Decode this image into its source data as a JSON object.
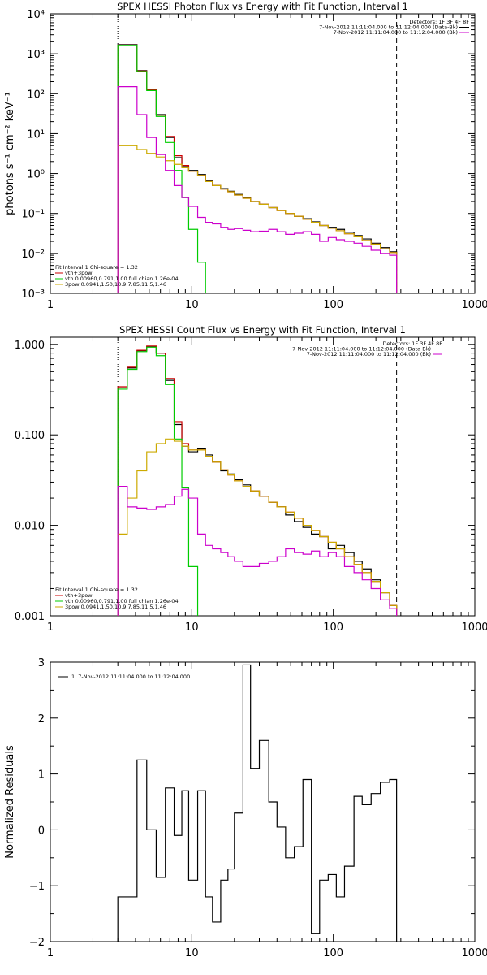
{
  "chart_data": [
    {
      "type": "line",
      "title": "SPEX HESSI Photon Flux vs Energy with Fit Function, Interval 1",
      "xlabel": "",
      "ylabel": "photons s⁻¹ cm⁻² keV⁻¹",
      "xscale": "log",
      "yscale": "log",
      "xlim": [
        1,
        1000
      ],
      "ylim": [
        0.001,
        10000
      ],
      "x_ticks": [
        {
          "v": 1,
          "label": "1"
        },
        {
          "v": 10,
          "label": "10"
        },
        {
          "v": 100,
          "label": "100"
        },
        {
          "v": 1000,
          "label": "1000"
        }
      ],
      "y_ticks": [
        {
          "v": 0.001,
          "label": "10⁻³"
        },
        {
          "v": 0.01,
          "label": "10⁻²"
        },
        {
          "v": 0.1,
          "label": "10⁻¹"
        },
        {
          "v": 1,
          "label": "10⁰"
        },
        {
          "v": 10,
          "label": "10¹"
        },
        {
          "v": 100,
          "label": "10²"
        },
        {
          "v": 1000,
          "label": "10³"
        },
        {
          "v": 10000,
          "label": "10⁴"
        }
      ],
      "vlines": [
        {
          "x": 3,
          "style": "dotted",
          "color": "#000000"
        },
        {
          "x": 280,
          "style": "dashed",
          "color": "#000000"
        }
      ],
      "legend_top_right": [
        "Detectors: 1F 3F 4F 8F",
        "7-Nov-2012 11:11:04.000 to 11:12:04.000 (Data-Bk)",
        "7-Nov-2012 11:11:04.000 to 11:12:04.000 (Bk)"
      ],
      "legend_bottom_left": [
        "Fit Interval 1   Chi-square = 1.32",
        "vth+3pow",
        "vth 0.00960,0.791,1.00  full chian 1.26e-04",
        "3pow 0.0941,1.50,10.9,7.85,11.5,1.46"
      ],
      "series": [
        {
          "name": "Data-Bk",
          "color": "#000000",
          "edges": [
            3,
            3.5,
            4.1,
            4.8,
            5.6,
            6.5,
            7.5,
            8.5,
            9.5,
            11,
            12.5,
            14,
            16,
            18,
            20,
            23,
            26,
            30,
            35,
            40,
            46,
            53,
            61,
            70,
            80,
            92,
            105,
            120,
            140,
            160,
            185,
            215,
            250,
            280
          ],
          "values": [
            1700,
            1700,
            380,
            130,
            30,
            8,
            2.5,
            1.5,
            1.2,
            0.95,
            0.65,
            0.5,
            0.42,
            0.36,
            0.3,
            0.25,
            0.2,
            0.17,
            0.14,
            0.12,
            0.1,
            0.085,
            0.074,
            0.062,
            0.05,
            0.045,
            0.04,
            0.034,
            0.028,
            0.023,
            0.018,
            0.014,
            0.011
          ]
        },
        {
          "name": "vth+3pow",
          "color": "#cc0000",
          "edges": [
            3,
            3.5,
            4.1,
            4.8,
            5.6,
            6.5,
            7.5,
            8.5,
            9.5,
            11,
            12.5,
            14,
            16,
            18,
            20,
            23,
            26,
            30,
            35,
            40,
            46,
            53,
            61,
            70,
            80,
            92,
            105,
            120,
            140,
            160,
            185,
            215,
            250,
            280
          ],
          "values": [
            1650,
            1650,
            370,
            125,
            29,
            8.5,
            2.8,
            1.6,
            1.15,
            0.9,
            0.63,
            0.5,
            0.41,
            0.35,
            0.29,
            0.24,
            0.2,
            0.17,
            0.14,
            0.118,
            0.1,
            0.085,
            0.072,
            0.06,
            0.05,
            0.043,
            0.037,
            0.031,
            0.026,
            0.021,
            0.017,
            0.013,
            0.0105
          ]
        },
        {
          "name": "vth",
          "color": "#00cc00",
          "edges": [
            3,
            3.5,
            4.1,
            4.8,
            5.6,
            6.5,
            7.5,
            8.5,
            9.5,
            11,
            12.5,
            14
          ],
          "values": [
            1600,
            1600,
            360,
            120,
            27,
            6,
            1.2,
            0.25,
            0.04,
            0.006,
            0.0008
          ]
        },
        {
          "name": "3pow",
          "color": "#ccaa00",
          "edges": [
            3,
            3.5,
            4.1,
            4.8,
            5.6,
            6.5,
            7.5,
            8.5,
            9.5,
            11,
            12.5,
            14,
            16,
            18,
            20,
            23,
            26,
            30,
            35,
            40,
            46,
            53,
            61,
            70,
            80,
            92,
            105,
            120,
            140,
            160,
            185,
            215,
            250,
            280
          ],
          "values": [
            5,
            5,
            4,
            3.2,
            2.6,
            2.1,
            1.7,
            1.4,
            1.15,
            0.9,
            0.63,
            0.5,
            0.41,
            0.35,
            0.29,
            0.24,
            0.2,
            0.17,
            0.14,
            0.118,
            0.1,
            0.085,
            0.072,
            0.06,
            0.05,
            0.043,
            0.037,
            0.031,
            0.026,
            0.021,
            0.017,
            0.013,
            0.0105
          ]
        },
        {
          "name": "Bk",
          "color": "#cc00cc",
          "edges": [
            3,
            3.5,
            4.1,
            4.8,
            5.6,
            6.5,
            7.5,
            8.5,
            9.5,
            11,
            12.5,
            14,
            16,
            18,
            20,
            23,
            26,
            30,
            35,
            40,
            46,
            53,
            61,
            70,
            80,
            92,
            105,
            120,
            140,
            160,
            185,
            215,
            250,
            280
          ],
          "values": [
            150,
            150,
            30,
            8,
            3,
            1.2,
            0.5,
            0.25,
            0.15,
            0.08,
            0.06,
            0.055,
            0.045,
            0.04,
            0.042,
            0.038,
            0.035,
            0.036,
            0.04,
            0.035,
            0.03,
            0.032,
            0.035,
            0.03,
            0.02,
            0.025,
            0.022,
            0.02,
            0.018,
            0.015,
            0.012,
            0.01,
            0.009
          ]
        }
      ]
    },
    {
      "type": "line",
      "title": "SPEX HESSI Count Flux vs Energy with Fit Function, Interval 1",
      "xlabel": "",
      "ylabel": "",
      "xscale": "log",
      "yscale": "log",
      "xlim": [
        1,
        1000
      ],
      "ylim": [
        0.001,
        1.2
      ],
      "x_ticks": [
        {
          "v": 1,
          "label": "1"
        },
        {
          "v": 10,
          "label": "10"
        },
        {
          "v": 100,
          "label": "100"
        },
        {
          "v": 1000,
          "label": "1000"
        }
      ],
      "y_ticks": [
        {
          "v": 0.001,
          "label": "0.001"
        },
        {
          "v": 0.01,
          "label": "0.010"
        },
        {
          "v": 0.1,
          "label": "0.100"
        },
        {
          "v": 1,
          "label": "1.000"
        }
      ],
      "vlines": [
        {
          "x": 3,
          "style": "dotted",
          "color": "#000000"
        },
        {
          "x": 280,
          "style": "dashed",
          "color": "#000000"
        }
      ],
      "legend_top_right": [
        "Detectors: 1F 3F 4F 8F",
        "7-Nov-2012 11:11:04.000 to 11:12:04.000 (Data-Bk)",
        "7-Nov-2012 11:11:04.000 to 11:12:04.000 (Bk)"
      ],
      "legend_bottom_left": [
        "Fit Interval 1   Chi-square = 1.32",
        "vth+3pow",
        "vth 0.00960,0.791,1.00  full chian 1.26e-04",
        "3pow 0.0941,1.50,10.9,7.85,11.5,1.46"
      ],
      "series": [
        {
          "name": "Data-Bk",
          "color": "#000000",
          "edges": [
            3,
            3.5,
            4.1,
            4.8,
            5.6,
            6.5,
            7.5,
            8.5,
            9.5,
            11,
            12.5,
            14,
            16,
            18,
            20,
            23,
            26,
            30,
            35,
            40,
            46,
            53,
            61,
            70,
            80,
            92,
            105,
            120,
            140,
            160,
            185,
            215,
            250,
            280
          ],
          "values": [
            0.33,
            0.55,
            0.85,
            0.95,
            0.8,
            0.4,
            0.13,
            0.075,
            0.065,
            0.07,
            0.06,
            0.05,
            0.04,
            0.037,
            0.032,
            0.028,
            0.024,
            0.021,
            0.018,
            0.016,
            0.013,
            0.011,
            0.0095,
            0.008,
            0.0075,
            0.0055,
            0.006,
            0.005,
            0.004,
            0.0033,
            0.0025,
            0.0018,
            0.0013
          ]
        },
        {
          "name": "vth+3pow",
          "color": "#cc0000",
          "edges": [
            3,
            3.5,
            4.1,
            4.8,
            5.6,
            6.5,
            7.5,
            8.5,
            9.5,
            11,
            12.5,
            14,
            16,
            18,
            20,
            23,
            26,
            30,
            35,
            40,
            46,
            53,
            61,
            70,
            80,
            92,
            105,
            120,
            140,
            160,
            185,
            215,
            250,
            280
          ],
          "values": [
            0.34,
            0.56,
            0.86,
            0.96,
            0.8,
            0.42,
            0.14,
            0.08,
            0.068,
            0.068,
            0.058,
            0.05,
            0.041,
            0.036,
            0.031,
            0.027,
            0.024,
            0.021,
            0.018,
            0.016,
            0.014,
            0.012,
            0.01,
            0.0088,
            0.0075,
            0.0065,
            0.0055,
            0.0045,
            0.0037,
            0.003,
            0.0024,
            0.0018,
            0.0013
          ]
        },
        {
          "name": "vth",
          "color": "#00cc00",
          "edges": [
            3,
            3.5,
            4.1,
            4.8,
            5.6,
            6.5,
            7.5,
            8.5,
            9.5,
            11,
            12.5
          ],
          "values": [
            0.32,
            0.53,
            0.83,
            0.93,
            0.75,
            0.36,
            0.09,
            0.026,
            0.0035,
            0.0008
          ]
        },
        {
          "name": "3pow",
          "color": "#ccaa00",
          "edges": [
            3,
            3.5,
            4.1,
            4.8,
            5.6,
            6.5,
            7.5,
            8.5,
            9.5,
            11,
            12.5,
            14,
            16,
            18,
            20,
            23,
            26,
            30,
            35,
            40,
            46,
            53,
            61,
            70,
            80,
            92,
            105,
            120,
            140,
            160,
            185,
            215,
            250,
            280
          ],
          "values": [
            0.008,
            0.02,
            0.04,
            0.065,
            0.08,
            0.09,
            0.085,
            0.075,
            0.068,
            0.068,
            0.058,
            0.05,
            0.041,
            0.036,
            0.031,
            0.027,
            0.024,
            0.021,
            0.018,
            0.016,
            0.014,
            0.012,
            0.01,
            0.0088,
            0.0075,
            0.0065,
            0.0055,
            0.0045,
            0.0037,
            0.003,
            0.0024,
            0.0018,
            0.0013
          ]
        },
        {
          "name": "Bk",
          "color": "#cc00cc",
          "edges": [
            3,
            3.5,
            4.1,
            4.8,
            5.6,
            6.5,
            7.5,
            8.5,
            9.5,
            11,
            12.5,
            14,
            16,
            18,
            20,
            23,
            26,
            30,
            35,
            40,
            46,
            53,
            61,
            70,
            80,
            92,
            105,
            120,
            140,
            160,
            185,
            215,
            250,
            280
          ],
          "values": [
            0.027,
            0.016,
            0.0155,
            0.015,
            0.016,
            0.017,
            0.021,
            0.025,
            0.02,
            0.008,
            0.006,
            0.0055,
            0.005,
            0.0045,
            0.004,
            0.0035,
            0.0035,
            0.0038,
            0.004,
            0.0045,
            0.0055,
            0.005,
            0.0048,
            0.0052,
            0.0045,
            0.005,
            0.0045,
            0.0035,
            0.003,
            0.0025,
            0.002,
            0.0015,
            0.0012
          ]
        }
      ]
    },
    {
      "type": "line",
      "title": "",
      "xlabel": "",
      "ylabel": "Normalized Residuals",
      "xscale": "log",
      "yscale": "linear",
      "xlim": [
        1,
        1000
      ],
      "ylim": [
        -2,
        3
      ],
      "x_ticks": [
        {
          "v": 1,
          "label": "1"
        },
        {
          "v": 10,
          "label": "10"
        },
        {
          "v": 100,
          "label": "100"
        },
        {
          "v": 1000,
          "label": "1000"
        }
      ],
      "y_ticks": [
        {
          "v": -2,
          "label": "−2"
        },
        {
          "v": -1,
          "label": "−1"
        },
        {
          "v": 0,
          "label": "0"
        },
        {
          "v": 1,
          "label": "1"
        },
        {
          "v": 2,
          "label": "2"
        },
        {
          "v": 3,
          "label": "3"
        }
      ],
      "legend_top_left": [
        "1.  7-Nov-2012 11:11:04.000 to 11:12:04.000"
      ],
      "series": [
        {
          "name": "1.  7-Nov-2012 11:11:04.000 to 11:12:04.000",
          "color": "#000000",
          "edges": [
            3,
            3.5,
            4.1,
            4.8,
            5.6,
            6.5,
            7.5,
            8.5,
            9.5,
            11,
            12.5,
            14,
            16,
            18,
            20,
            23,
            26,
            30,
            35,
            40,
            46,
            53,
            61,
            70,
            80,
            92,
            105,
            120,
            140,
            160,
            185,
            215,
            250,
            280
          ],
          "values": [
            -1.2,
            -1.2,
            1.25,
            0,
            -0.85,
            0.75,
            -0.1,
            0.7,
            -0.9,
            0.7,
            -1.2,
            -1.65,
            -0.9,
            -0.7,
            0.3,
            2.95,
            1.1,
            1.6,
            0.5,
            0.05,
            -0.5,
            -0.3,
            0.9,
            -1.85,
            -0.9,
            -0.8,
            -1.2,
            -0.65,
            0.6,
            0.45,
            0.65,
            0.85,
            0.9
          ]
        }
      ]
    }
  ]
}
